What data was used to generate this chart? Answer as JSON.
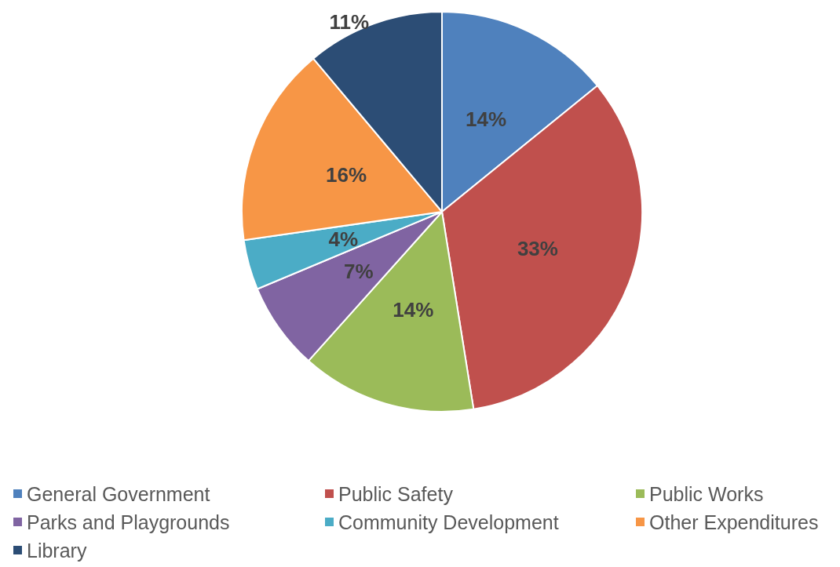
{
  "chart_data": {
    "type": "pie",
    "categories": [
      "General Government",
      "Public Safety",
      "Public Works",
      "Parks and Playgrounds",
      "Community Development",
      "Other Expenditures",
      "Library"
    ],
    "values": [
      14,
      33,
      14,
      7,
      4,
      16,
      11
    ],
    "value_labels": [
      "14%",
      "33%",
      "14%",
      "7%",
      "4%",
      "16%",
      "11%"
    ],
    "colors": [
      "#4f81bd",
      "#c0504d",
      "#9bbb59",
      "#8064a2",
      "#4bacc6",
      "#f79646",
      "#2c4d75"
    ],
    "legend": "bottom"
  }
}
